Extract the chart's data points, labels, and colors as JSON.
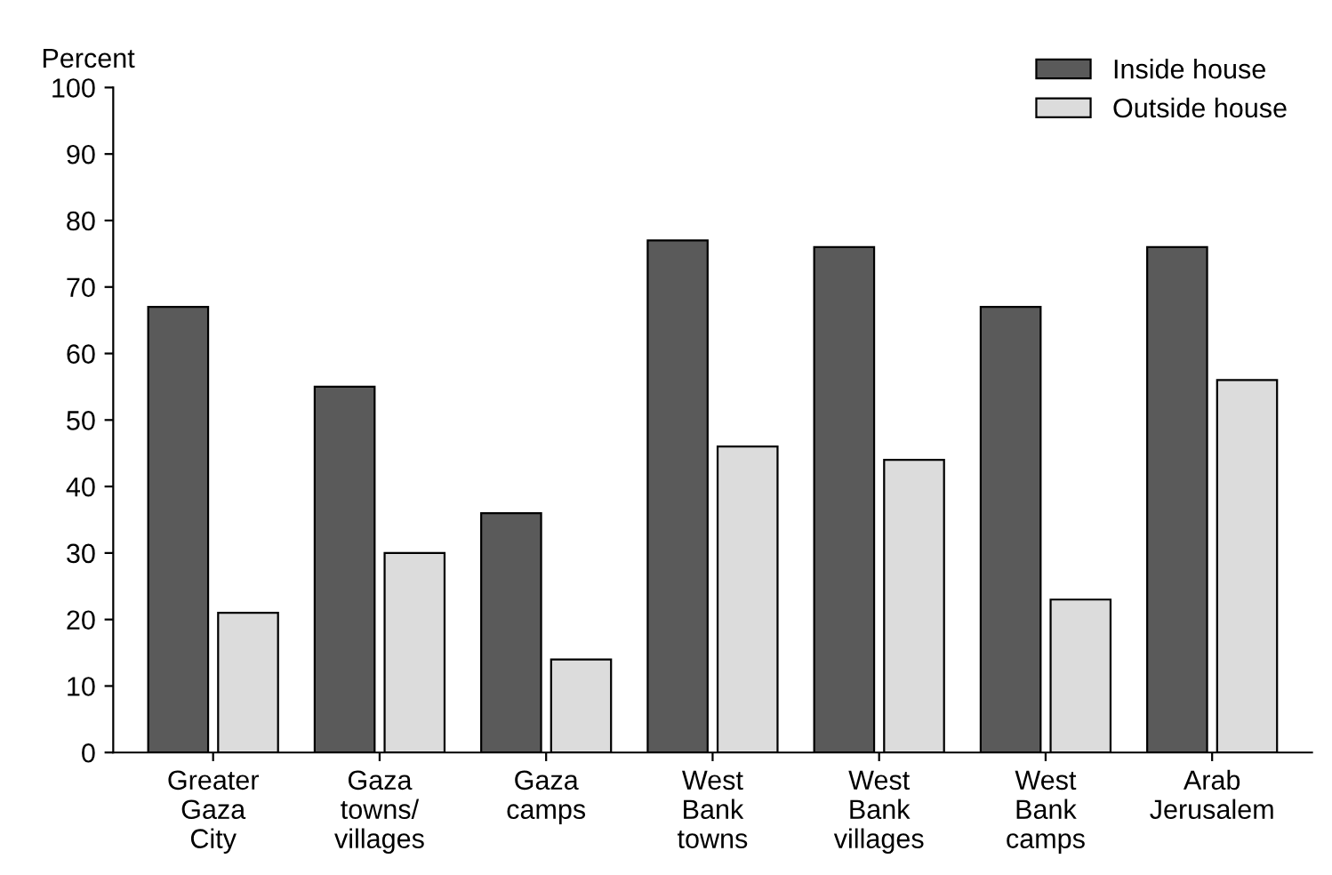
{
  "chart_data": {
    "type": "bar",
    "ylabel": "Percent",
    "categories": [
      "Greater\nGaza\nCity",
      "Gaza\ntowns/\nvillages",
      "Gaza\ncamps",
      "West\nBank\ntowns",
      "West\nBank\nvillages",
      "West\nBank\ncamps",
      "Arab\nJerusalem"
    ],
    "series": [
      {
        "name": "Inside house",
        "color": "#5a5a5a",
        "values": [
          67,
          55,
          36,
          77,
          76,
          67,
          76
        ]
      },
      {
        "name": "Outside house",
        "color": "#dcdcdc",
        "values": [
          21,
          30,
          14,
          46,
          44,
          23,
          56
        ]
      }
    ],
    "ylim": [
      0,
      100
    ],
    "yticks": [
      0,
      10,
      20,
      30,
      40,
      50,
      60,
      70,
      80,
      90,
      100
    ],
    "grid": false,
    "legend": "top right"
  }
}
